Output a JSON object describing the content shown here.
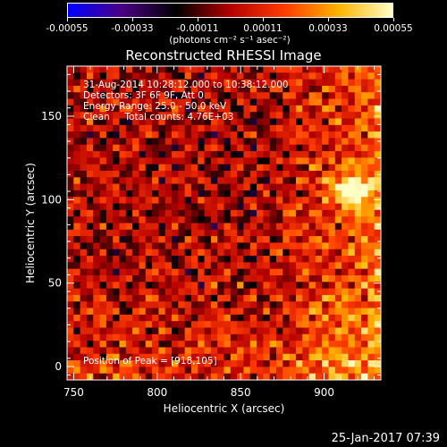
{
  "colorbar": {
    "ticks": [
      "-0.00055",
      "-0.00033",
      "-0.00011",
      "0.00011",
      "0.00033",
      "0.00055"
    ],
    "unit": "(photons cm⁻² s⁻¹ asec⁻²)"
  },
  "info": {
    "line1": "31-Aug-2014 10:28:12.000 to 10:38:12.000",
    "line2": "Detectors: 3F 6F 9F, Att 0",
    "line3": "Energy Range: 25.0 - 50.0 keV",
    "line4": "Clean     Total counts: 4.76E+03",
    "peak": "Position of Peak = [918,105]"
  },
  "footer": {
    "date": "25-Jan-2017 07:39"
  },
  "chart_data": {
    "type": "heatmap",
    "title": "Reconstructed RHESSI Image",
    "xlabel": "Heliocentric X (arcsec)",
    "ylabel": "Heliocentric Y (arcsec)",
    "xlim": [
      746,
      934
    ],
    "ylim": [
      -8,
      180
    ],
    "xticks": [
      "750",
      "800",
      "850",
      "900"
    ],
    "yticks": [
      "0",
      "50",
      "100",
      "150"
    ],
    "xtick_values": [
      750,
      800,
      850,
      900
    ],
    "ytick_values": [
      0,
      50,
      100,
      150
    ],
    "zlim": [
      -0.00055,
      0.00055
    ],
    "colormap": [
      "#0000ff",
      "#4b0082",
      "#000000",
      "#b40000",
      "#ff3c00",
      "#ffb400",
      "#ffffc8"
    ],
    "peak": [
      918,
      105
    ]
  }
}
